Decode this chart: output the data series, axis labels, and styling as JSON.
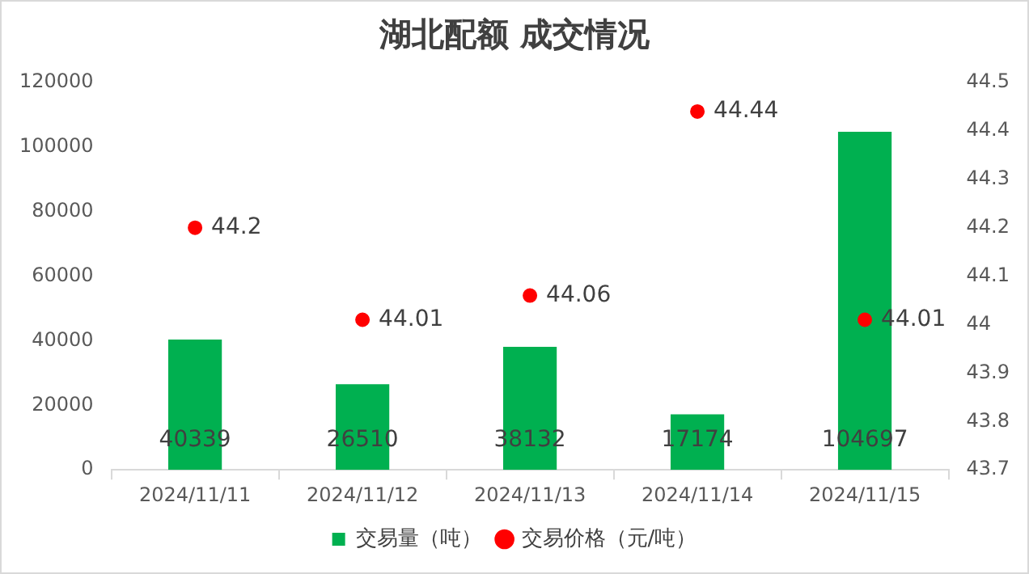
{
  "chart_data": {
    "type": "bar",
    "title": "湖北配额 成交情况",
    "categories": [
      "2024/11/11",
      "2024/11/12",
      "2024/11/13",
      "2024/11/14",
      "2024/11/15"
    ],
    "series": [
      {
        "name": "交易量（吨）",
        "color": "#00b050",
        "values": [
          40339,
          26510,
          38132,
          17174,
          104697
        ]
      },
      {
        "name": "交易价格（元/吨）",
        "type": "scatter",
        "axis": "y2",
        "color": "#ff0000",
        "x": [
          "2024/11/11",
          "2024/11/12",
          "2024/11/13",
          "2024/11/14",
          "2024/11/15"
        ],
        "values": [
          44.2,
          44.01,
          44.06,
          44.44,
          44.01
        ]
      }
    ],
    "ylim": [
      0,
      120000
    ],
    "yticks": [
      0,
      20000,
      40000,
      60000,
      80000,
      100000,
      120000
    ],
    "y2lim": [
      43.7,
      44.5
    ],
    "y2ticks": [
      43.7,
      43.8,
      43.9,
      44,
      44.1,
      44.2,
      44.3,
      44.4,
      44.5
    ],
    "data_labels": true,
    "grid": false,
    "legend": "bottom",
    "marker": "circle"
  }
}
